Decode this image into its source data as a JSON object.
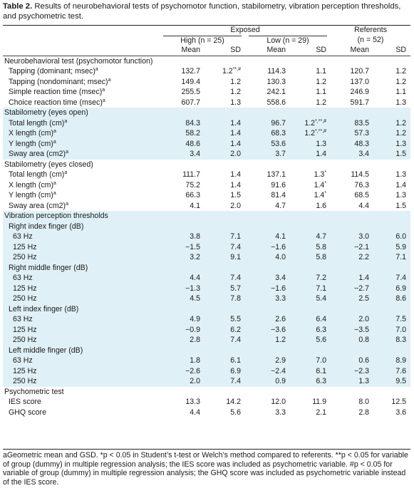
{
  "caption": {
    "label": "Table 2.",
    "text": " Results of neurobehavioral tests of psychomotor function, stabilometry, vibration perception thresholds, and psychometric test."
  },
  "headers": {
    "exposed": "Exposed",
    "referents": "Referents",
    "high": "High (n = 25)",
    "low": "Low (n = 29)",
    "ref_n": "(n = 52)",
    "mean": "Mean",
    "sd": "SD"
  },
  "sections": [
    {
      "title": "Neurobehavioral test (psychomotor function)",
      "shade": false,
      "rows": [
        {
          "label": "Tapping (dominant; msec)",
          "sup": "a",
          "v": [
            "132.7",
            "1.2",
            "114.3",
            "1.1",
            "120.7",
            "1.2"
          ],
          "mark": "**,#"
        },
        {
          "label": "Tapping (nondominant; msec)",
          "sup": "a",
          "v": [
            "149.4",
            "1.2",
            "130.3",
            "1.2",
            "137.0",
            "1.2"
          ],
          "mark": ""
        },
        {
          "label": "Simple reaction time (msec)",
          "sup": "a",
          "v": [
            "255.5",
            "1.2",
            "242.1",
            "1.1",
            "246.9",
            "1.1"
          ],
          "mark": ""
        },
        {
          "label": "Choice reaction time (msec)",
          "sup": "a",
          "v": [
            "607.7",
            "1.3",
            "558.6",
            "1.2",
            "591.7",
            "1.3"
          ],
          "mark": ""
        }
      ]
    },
    {
      "title": "Stabilometry (eyes open)",
      "shade": true,
      "rows": [
        {
          "label": "Total length (cm)",
          "sup": "a",
          "v": [
            "84.3",
            "1.4",
            "96.7",
            "1.2",
            "83.5",
            "1.2"
          ],
          "mark2": "*,**,#"
        },
        {
          "label": "X length (cm)",
          "sup": "a",
          "v": [
            "58.2",
            "1.4",
            "68.3",
            "1.2",
            "57.3",
            "1.2"
          ],
          "mark2": "*,**,#"
        },
        {
          "label": "Y length (cm)",
          "sup": "a",
          "v": [
            "48.6",
            "1.4",
            "53.6",
            "1.3",
            "48.3",
            "1.3"
          ],
          "mark2": ""
        },
        {
          "label": "Sway area (cm2)",
          "sup": "a",
          "v": [
            "3.4",
            "2.0",
            "3.7",
            "1.4",
            "3.4",
            "1.5"
          ],
          "mark2": ""
        }
      ]
    },
    {
      "title": "Stabilometry (eyes closed)",
      "shade": false,
      "rows": [
        {
          "label": "Total length (cm)",
          "sup": "a",
          "v": [
            "111.7",
            "1.4",
            "137.1",
            "1.3",
            "114.5",
            "1.3"
          ],
          "mark2": "*"
        },
        {
          "label": "X length (cm)",
          "sup": "a",
          "v": [
            "75.2",
            "1.4",
            "91.6",
            "1.4",
            "76.3",
            "1.4"
          ],
          "mark2": "*"
        },
        {
          "label": "Y length (cm)",
          "sup": "a",
          "v": [
            "66.3",
            "1.5",
            "81.4",
            "1.4",
            "68.5",
            "1.3"
          ],
          "mark2": "*"
        },
        {
          "label": "Sway area (cm2)",
          "sup": "a",
          "v": [
            "4.1",
            "2.0",
            "4.7",
            "1.6",
            "4.4",
            "1.5"
          ],
          "mark2": ""
        }
      ]
    }
  ],
  "vibration": {
    "title": "Vibration perception thresholds",
    "fingers": [
      {
        "name": "Right index finger (dB)",
        "rows": [
          {
            "hz": "63 Hz",
            "v": [
              "3.8",
              "7.1",
              "4.1",
              "4.7",
              "3.0",
              "6.0"
            ]
          },
          {
            "hz": "125 Hz",
            "v": [
              "−1.5",
              "7.4",
              "−1.6",
              "5.8",
              "−2.1",
              "5.9"
            ]
          },
          {
            "hz": "250 Hz",
            "v": [
              "3.2",
              "9.1",
              "4.0",
              "5.8",
              "2.2",
              "7.1"
            ]
          }
        ]
      },
      {
        "name": "Right middle finger (dB)",
        "rows": [
          {
            "hz": "63 Hz",
            "v": [
              "4.4",
              "7.4",
              "3.4",
              "7.2",
              "1.4",
              "7.4"
            ]
          },
          {
            "hz": "125 Hz",
            "v": [
              "−1.3",
              "5.7",
              "−1.6",
              "7.1",
              "−2.7",
              "6.9"
            ]
          },
          {
            "hz": "250 Hz",
            "v": [
              "4.5",
              "7.8",
              "3.3",
              "5.4",
              "2.5",
              "8.6"
            ]
          }
        ]
      },
      {
        "name": "Left index finger (dB)",
        "rows": [
          {
            "hz": "63 Hz",
            "v": [
              "4.9",
              "5.5",
              "2.6",
              "6.4",
              "2.0",
              "7.5"
            ]
          },
          {
            "hz": "125 Hz",
            "v": [
              "−0.9",
              "6.2",
              "−3.6",
              "6.3",
              "−3.5",
              "7.0"
            ]
          },
          {
            "hz": "250 Hz",
            "v": [
              "2.8",
              "7.4",
              "1.2",
              "5.6",
              "0.8",
              "8.3"
            ]
          }
        ]
      },
      {
        "name": "Left middle finger (dB)",
        "rows": [
          {
            "hz": "63 Hz",
            "v": [
              "1.8",
              "6.1",
              "2.9",
              "7.0",
              "0.6",
              "8.9"
            ]
          },
          {
            "hz": "125 Hz",
            "v": [
              "−2.6",
              "6.9",
              "−2.4",
              "6.1",
              "−2.3",
              "7.6"
            ]
          },
          {
            "hz": "250 Hz",
            "v": [
              "2.0",
              "7.4",
              "0.9",
              "6.3",
              "1.3",
              "9.5"
            ]
          }
        ]
      }
    ]
  },
  "psychometric": {
    "title": "Psychometric test",
    "rows": [
      {
        "label": "IES score",
        "v": [
          "13.3",
          "14.2",
          "12.0",
          "11.9",
          "8.0",
          "12.5"
        ]
      },
      {
        "label": "GHQ score",
        "v": [
          "4.4",
          "5.6",
          "3.3",
          "2.1",
          "2.8",
          "3.6"
        ]
      }
    ]
  },
  "footnote": "aGeometric mean and GSD. *p < 0.05 in Student’s t-test or Welch’s method compared to referents. **p < 0.05 for variable of group (dummy) in multiple regression analysis; the IES score was included as psychometric variable. #p < 0.05 for variable of group (dummy) in multiple regression analysis; the GHQ score was included as psychometric variable instead of the IES score."
}
